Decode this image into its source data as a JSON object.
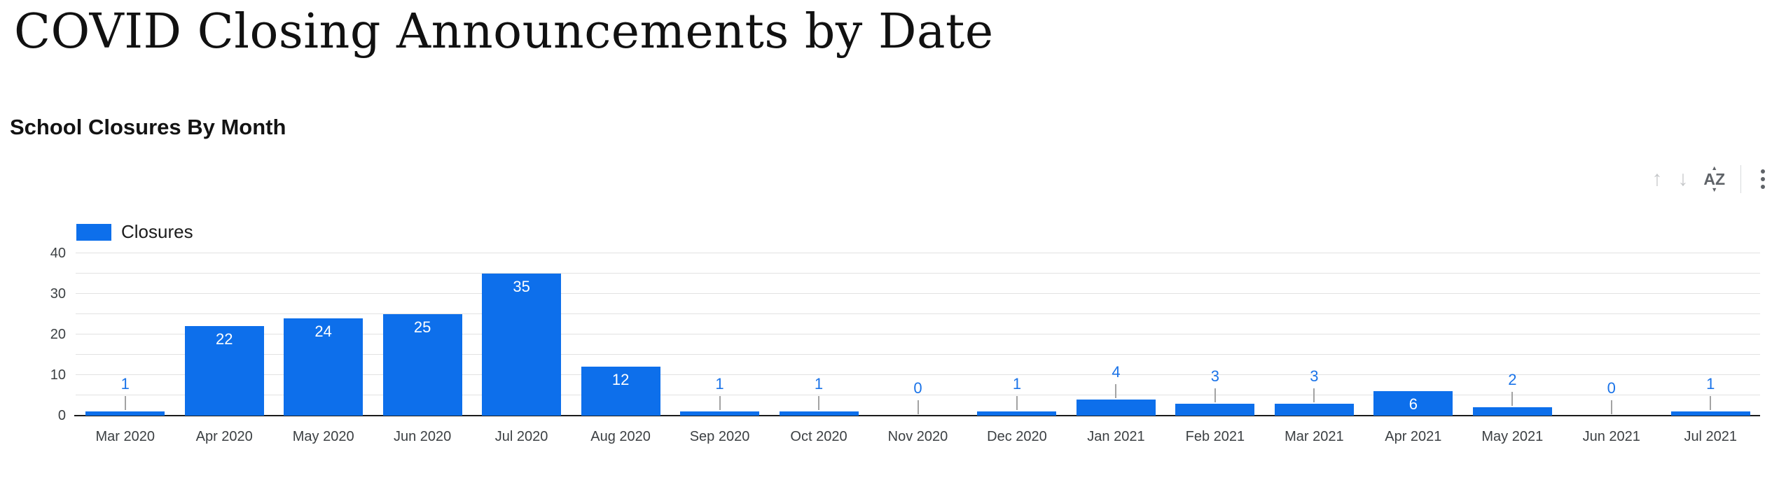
{
  "page": {
    "title": "COVID Closing Announcements by Date"
  },
  "chart": {
    "title": "School Closures By Month"
  },
  "toolbar": {
    "sort_up_glyph": "↑",
    "sort_down_glyph": "↓",
    "az_label": "AZ",
    "az_up_glyph": "▲",
    "az_down_glyph": "▼",
    "menu_icon_name": "more-options-kebab"
  },
  "chart_data": {
    "type": "bar",
    "title": "School Closures By Month",
    "series_name": "Closures",
    "categories": [
      "Mar 2020",
      "Apr 2020",
      "May 2020",
      "Jun 2020",
      "Jul 2020",
      "Aug 2020",
      "Sep 2020",
      "Oct 2020",
      "Nov 2020",
      "Dec 2020",
      "Jan 2021",
      "Feb 2021",
      "Mar 2021",
      "Apr 2021",
      "May 2021",
      "Jun 2021",
      "Jul 2021"
    ],
    "values": [
      1,
      22,
      24,
      25,
      35,
      12,
      1,
      1,
      0,
      1,
      4,
      3,
      3,
      6,
      2,
      0,
      1
    ],
    "xlabel": "",
    "ylabel": "",
    "ylim": [
      0,
      40
    ],
    "y_major_ticks": [
      0,
      10,
      20,
      30,
      40
    ],
    "y_minor_step": 5,
    "grid": true,
    "legend_position": "top-left",
    "bar_color": "#0d6feb",
    "inside_label_color": "#ffffff",
    "outside_label_color": "#1a73e8",
    "leader_line_color": "#a3a3a3",
    "gridline_color": "#e2e2e2",
    "axis_line_color": "#1b1b1b",
    "tick_label_color": "#3c4043"
  }
}
